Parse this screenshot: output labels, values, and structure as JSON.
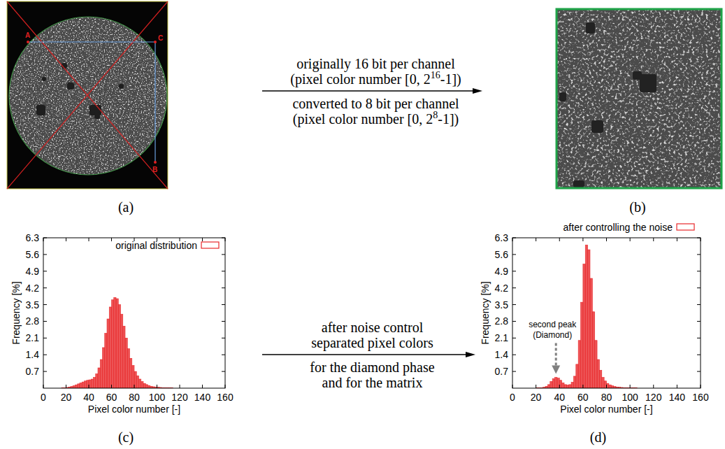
{
  "chart_data": [
    {
      "type": "histogram",
      "panel_label": "(c)",
      "xlabel": "Pixel color number [-]",
      "ylabel": "Frequency [%]",
      "bins": [
        14,
        16,
        18,
        20,
        22,
        24,
        26,
        28,
        30,
        32,
        34,
        36,
        38,
        40,
        42,
        44,
        46,
        48,
        50,
        52,
        54,
        56,
        58,
        60,
        62,
        64,
        66,
        68,
        70,
        72,
        74,
        76,
        78,
        80,
        82,
        84,
        86,
        88,
        90,
        92,
        94,
        96,
        98,
        100,
        102,
        104,
        106,
        108,
        110,
        112,
        114,
        116,
        118,
        120,
        122,
        124
      ],
      "series": [
        {
          "name": "original distribution",
          "color": "#e8282b",
          "values": [
            0,
            0.01,
            0.02,
            0.03,
            0.05,
            0.07,
            0.1,
            0.14,
            0.18,
            0.22,
            0.26,
            0.3,
            0.33,
            0.35,
            0.38,
            0.45,
            0.6,
            0.85,
            1.2,
            1.7,
            2.3,
            2.9,
            3.4,
            3.7,
            3.8,
            3.75,
            3.5,
            3.1,
            2.6,
            2.1,
            1.65,
            1.25,
            0.95,
            0.7,
            0.52,
            0.38,
            0.28,
            0.2,
            0.15,
            0.11,
            0.08,
            0.06,
            0.05,
            0.04,
            0.03,
            0.02,
            0.02,
            0.01,
            0.01,
            0.01,
            0,
            0,
            0,
            0,
            0
          ]
        }
      ],
      "xlim": [
        0,
        160
      ],
      "xticks": [
        0,
        20,
        40,
        60,
        80,
        100,
        120,
        140,
        160
      ],
      "ylim": [
        0,
        6.3
      ],
      "yticks": [
        0.7,
        1.4,
        2.1,
        2.8,
        3.5,
        4.2,
        4.9,
        5.6,
        6.3
      ],
      "legend": "top-right"
    },
    {
      "type": "histogram",
      "panel_label": "(d)",
      "xlabel": "Pixel color number [-]",
      "ylabel": "Frequency [%]",
      "bins": [
        14,
        16,
        18,
        20,
        22,
        24,
        26,
        28,
        30,
        32,
        34,
        36,
        38,
        40,
        42,
        44,
        46,
        48,
        50,
        52,
        54,
        56,
        58,
        60,
        62,
        64,
        66,
        68,
        70,
        72,
        74,
        76,
        78,
        80,
        82,
        84,
        86,
        88,
        90,
        92,
        94,
        96,
        98,
        100,
        102,
        104,
        106,
        108,
        110,
        112,
        114,
        116,
        118,
        120,
        122,
        124
      ],
      "series": [
        {
          "name": "after controlling the noise",
          "color": "#e8282b",
          "values": [
            0,
            0,
            0,
            0.01,
            0.01,
            0.02,
            0.04,
            0.08,
            0.15,
            0.28,
            0.4,
            0.45,
            0.42,
            0.33,
            0.22,
            0.15,
            0.13,
            0.15,
            0.25,
            0.5,
            1.0,
            2.0,
            3.6,
            5.2,
            6.0,
            5.8,
            4.6,
            3.2,
            2.0,
            1.2,
            0.75,
            0.45,
            0.3,
            0.2,
            0.14,
            0.1,
            0.07,
            0.05,
            0.04,
            0.03,
            0.02,
            0.02,
            0.01,
            0.01,
            0.01,
            0.01,
            0,
            0,
            0,
            0,
            0,
            0,
            0,
            0,
            0
          ]
        }
      ],
      "xlim": [
        0,
        160
      ],
      "xticks": [
        0,
        20,
        40,
        60,
        80,
        100,
        120,
        140,
        160
      ],
      "ylim": [
        0,
        6.3
      ],
      "yticks": [
        0.7,
        1.4,
        2.1,
        2.8,
        3.5,
        4.2,
        4.9,
        5.6,
        6.3
      ],
      "legend": "top",
      "annotations": [
        {
          "lines": [
            "second peak",
            "(Diamond)"
          ],
          "x": 37,
          "y": 0.6
        }
      ]
    }
  ],
  "images": [
    {
      "panel_label": "(a)",
      "points": [
        "A",
        "C",
        "B"
      ]
    },
    {
      "panel_label": "(b)"
    }
  ],
  "arrows": [
    {
      "above": [
        [
          {
            "text": "originally 16 bit per channel"
          }
        ],
        [
          {
            "text": "(pixel color number [0, 2"
          },
          {
            "text": "16",
            "sup": true
          },
          {
            "text": "-1])"
          }
        ]
      ],
      "below": [
        [
          {
            "text": "converted to 8 bit per channel"
          }
        ],
        [
          {
            "text": "(pixel color number [0, 2"
          },
          {
            "text": "8",
            "sup": true
          },
          {
            "text": "-1])"
          }
        ]
      ]
    },
    {
      "above": [
        [
          {
            "text": "after noise control"
          }
        ],
        [
          {
            "text": "separated pixel colors"
          }
        ]
      ],
      "below": [
        [
          {
            "text": "for the diamond phase"
          }
        ],
        [
          {
            "text": "and for the matrix"
          }
        ]
      ]
    }
  ]
}
